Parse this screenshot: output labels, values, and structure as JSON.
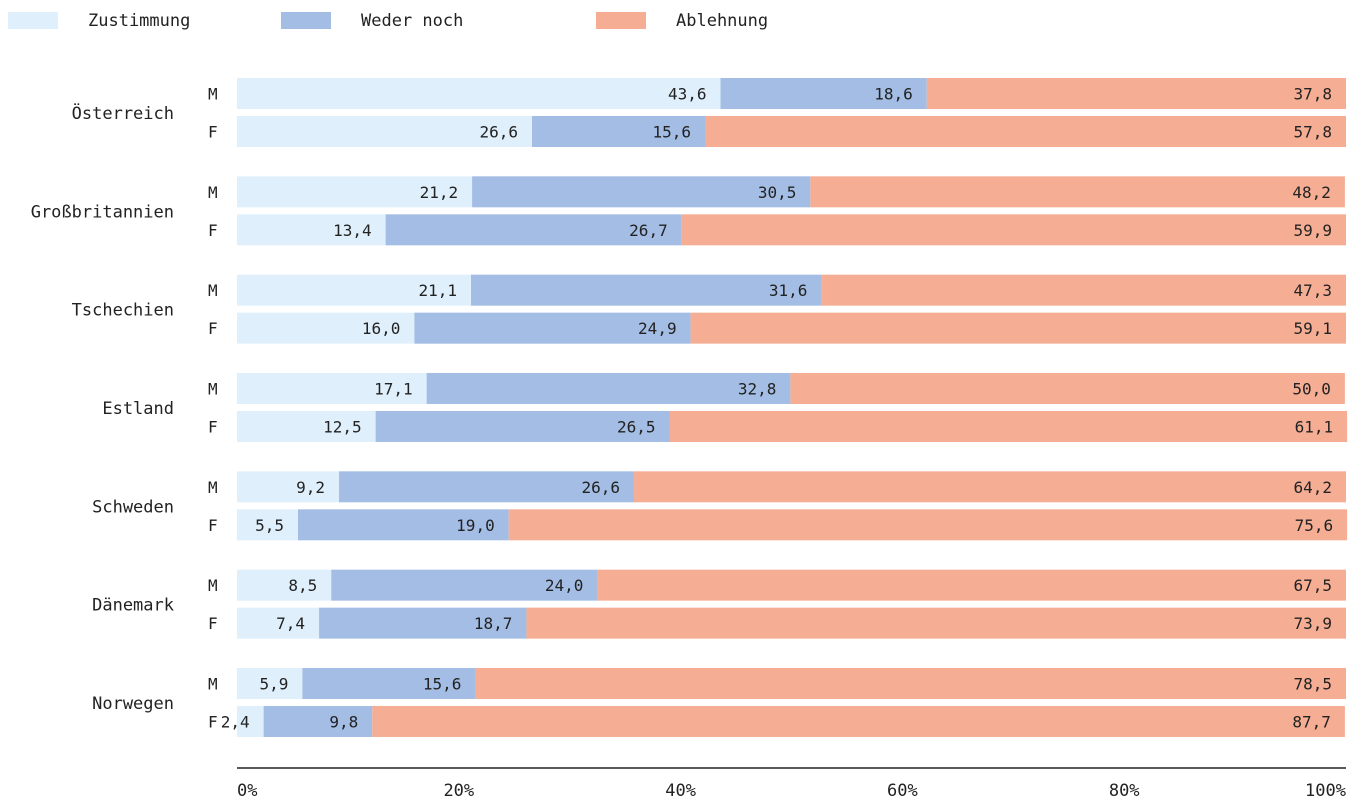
{
  "chart_data": {
    "type": "bar",
    "orientation": "horizontal",
    "stacked": true,
    "categories": [
      "Österreich",
      "Großbritannien",
      "Tschechien",
      "Estland",
      "Schweden",
      "Dänemark",
      "Norwegen"
    ],
    "groups": [
      "M",
      "F"
    ],
    "series": [
      {
        "name": "Zustimmung",
        "color": "#dff0fc",
        "values": {
          "M": [
            43.6,
            21.2,
            21.1,
            17.1,
            9.2,
            8.5,
            5.9
          ],
          "F": [
            26.6,
            13.4,
            16.0,
            12.5,
            5.5,
            7.4,
            2.4
          ]
        },
        "labels": {
          "M": [
            "43,6",
            "21,2",
            "21,1",
            "17,1",
            "9,2",
            "8,5",
            "5,9"
          ],
          "F": [
            "26,6",
            "13,4",
            "16,0",
            "12,5",
            "5,5",
            "7,4",
            "2,4"
          ]
        }
      },
      {
        "name": "Weder noch",
        "color": "#a3bde4",
        "values": {
          "M": [
            18.6,
            30.5,
            31.6,
            32.8,
            26.6,
            24.0,
            15.6
          ],
          "F": [
            15.6,
            26.7,
            24.9,
            26.5,
            19.0,
            18.7,
            9.8
          ]
        },
        "labels": {
          "M": [
            "18,6",
            "30,5",
            "31,6",
            "32,8",
            "26,6",
            "24,0",
            "15,6"
          ],
          "F": [
            "15,6",
            "26,7",
            "24,9",
            "26,5",
            "19,0",
            "18,7",
            "9,8"
          ]
        }
      },
      {
        "name": "Ablehnung",
        "color": "#f5ae94",
        "values": {
          "M": [
            37.8,
            48.2,
            47.3,
            50.0,
            64.2,
            67.5,
            78.5
          ],
          "F": [
            57.8,
            59.9,
            59.1,
            61.1,
            75.6,
            73.9,
            87.7
          ]
        },
        "labels": {
          "M": [
            "37,8",
            "48,2",
            "47,3",
            "50,0",
            "64,2",
            "67,5",
            "78,5"
          ],
          "F": [
            "57,8",
            "59,9",
            "59,1",
            "61,1",
            "75,6",
            "73,9",
            "87,7"
          ]
        }
      }
    ],
    "xlim": [
      0,
      100
    ],
    "xticks": [
      "0%",
      "20%",
      "40%",
      "60%",
      "80%",
      "100%"
    ],
    "legend": "top-left",
    "grid": false,
    "title": "",
    "xlabel": "",
    "ylabel": ""
  }
}
